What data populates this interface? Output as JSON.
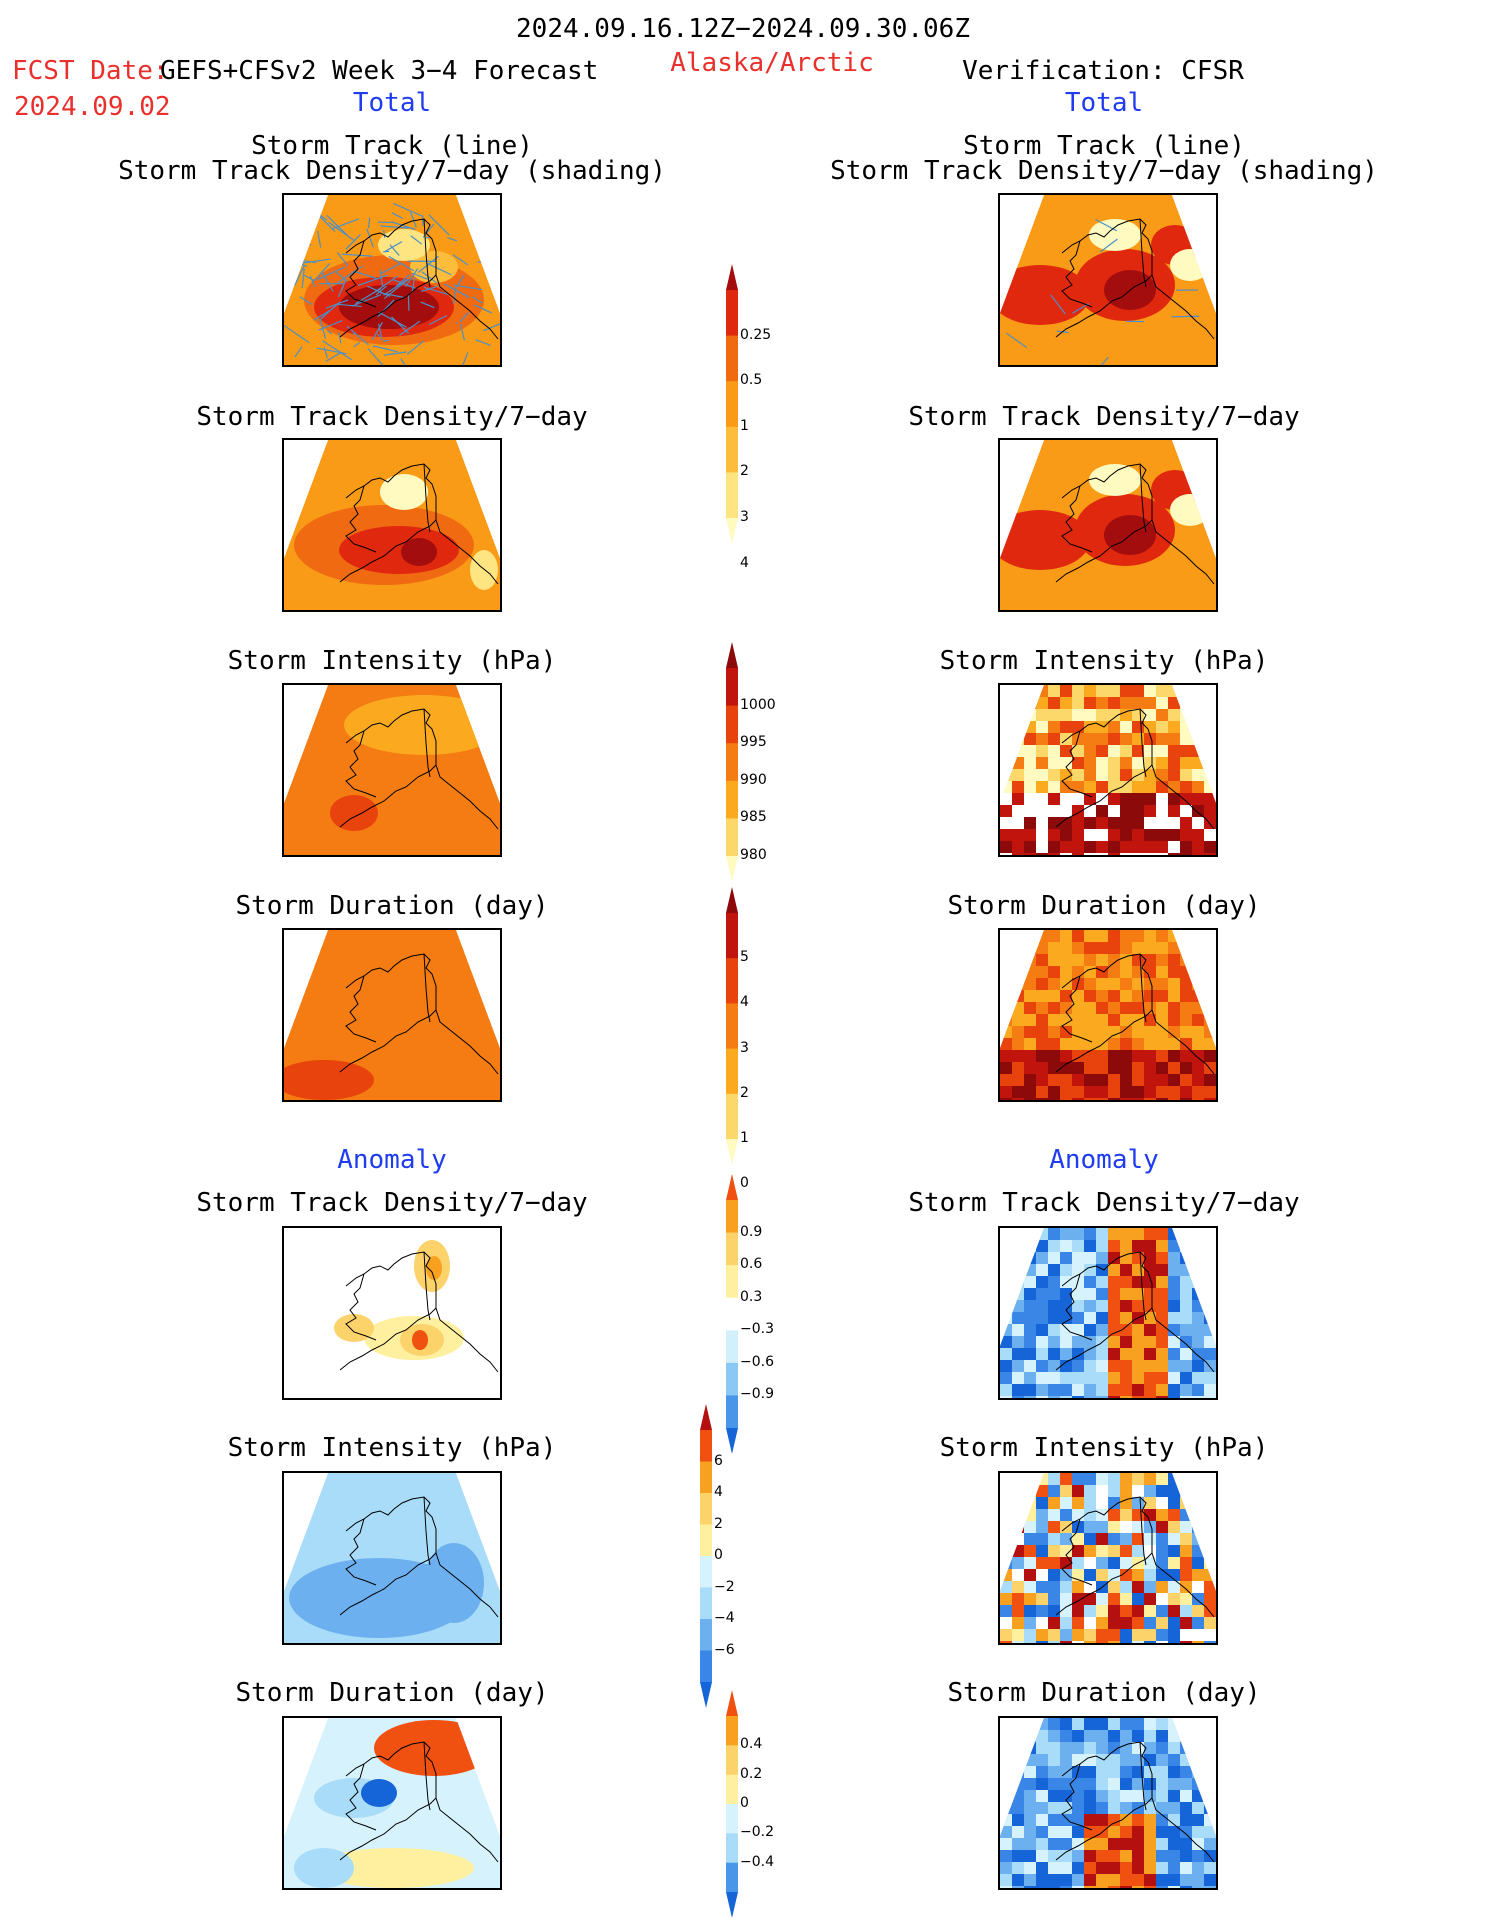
{
  "header": {
    "period": "2024.09.16.12Z−2024.09.30.06Z",
    "fcst_label": "FCST Date:",
    "fcst_model": "GEFS+CFSv2 Week 3−4 Forecast",
    "fcst_date": "2024.09.02",
    "region": "Alaska/Arctic",
    "verification": "Verification: CFSR",
    "left_col_label": "Total",
    "right_col_label": "Total"
  },
  "sections": {
    "anomaly_left": "Anomaly",
    "anomaly_right": "Anomaly"
  },
  "titles": {
    "track_line": "Storm Track (line)",
    "track_shading": "Storm Track Density/7−day (shading)",
    "density": "Storm Track Density/7−day",
    "intensity": "Storm Intensity (hPa)",
    "duration": "Storm Duration (day)"
  },
  "colors": {
    "frame": "#000000",
    "coast": "#000000",
    "track": "#4a90c8",
    "text_red": "#e8302c",
    "text_blue": "#1f3cf0"
  },
  "chart_data": [
    {
      "type": "heatmap",
      "name": "density_total_colorbar",
      "levels": [
        0.25,
        0.5,
        1,
        2,
        3,
        4
      ],
      "tick_labels": [
        "0.25",
        "0.5",
        "1",
        "2",
        "3",
        "4"
      ],
      "colors": [
        "#fffbc0",
        "#ffe482",
        "#fcbd3c",
        "#f99b16",
        "#f06a12",
        "#e0280e",
        "#a40d0d"
      ]
    },
    {
      "type": "heatmap",
      "name": "intensity_total_colorbar",
      "levels": [
        1000,
        995,
        990,
        985,
        980
      ],
      "tick_labels": [
        "1000",
        "995",
        "990",
        "985",
        "980"
      ],
      "colors": [
        "#fffbc0",
        "#fcd76a",
        "#fbaa20",
        "#f47c12",
        "#e8420d",
        "#c0140c",
        "#8c0a0a"
      ]
    },
    {
      "type": "heatmap",
      "name": "duration_total_colorbar",
      "levels": [
        0,
        1,
        2,
        3,
        4,
        5
      ],
      "tick_labels": [
        "5",
        "4",
        "3",
        "2",
        "1",
        "0"
      ],
      "colors": [
        "#fffbc0",
        "#fcd76a",
        "#fbaa20",
        "#f47c12",
        "#e8420d",
        "#c0140c",
        "#8c0a0a"
      ]
    },
    {
      "type": "heatmap",
      "name": "density_anomaly_colorbar",
      "levels": [
        -0.9,
        -0.6,
        -0.3,
        0.3,
        0.6,
        0.9
      ],
      "tick_labels": [
        "0.9",
        "0.6",
        "0.3",
        "−0.3",
        "−0.6",
        "−0.9"
      ],
      "colors": [
        "#1565d8",
        "#4896ea",
        "#8cc8f4",
        "#d2f0fc",
        "#ffffff",
        "#fff0a0",
        "#fcd26a",
        "#f8a020",
        "#f05010"
      ]
    },
    {
      "type": "heatmap",
      "name": "intensity_anomaly_colorbar",
      "levels": [
        -6,
        -4,
        -2,
        0,
        2,
        4,
        6
      ],
      "tick_labels": [
        "6",
        "4",
        "2",
        "0",
        "−2",
        "−4",
        "−6"
      ],
      "colors": [
        "#1565d8",
        "#3a86e6",
        "#6cb0f0",
        "#a8dcf8",
        "#d6f2fc",
        "#fff0a0",
        "#fcd26a",
        "#f8a020",
        "#f05010",
        "#b41010"
      ]
    },
    {
      "type": "heatmap",
      "name": "duration_anomaly_colorbar",
      "levels": [
        -0.4,
        -0.2,
        0,
        0.2,
        0.4
      ],
      "tick_labels": [
        "0.4",
        "0.2",
        "0",
        "−0.2",
        "−0.4"
      ],
      "colors": [
        "#1565d8",
        "#4896ea",
        "#a8dcf8",
        "#d6f2fc",
        "#fff0a0",
        "#fcd26a",
        "#f8a020",
        "#f05010"
      ]
    }
  ]
}
